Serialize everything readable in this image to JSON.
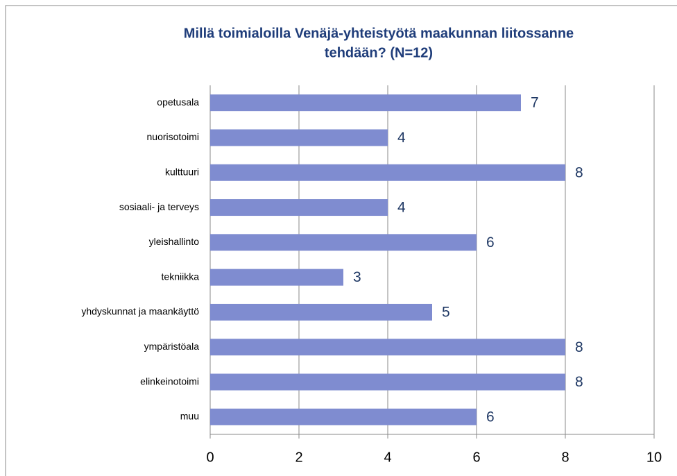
{
  "chart_data": {
    "type": "bar",
    "orientation": "horizontal",
    "title": [
      "Millä toimialoilla Venäjä-yhteistyötä maakunnan liitossanne",
      "tehdään? (N=12)"
    ],
    "categories": [
      "opetusala",
      "nuorisotoimi",
      "kulttuuri",
      "sosiaali- ja terveys",
      "yleishallinto",
      "tekniikka",
      "yhdyskunnat ja maankäyttö",
      "ympäristöala",
      "elinkeinotoimi",
      "muu"
    ],
    "values": [
      7,
      4,
      8,
      4,
      6,
      3,
      5,
      8,
      8,
      6
    ],
    "color": "#7f8cd0",
    "xlim": [
      0,
      10
    ],
    "xticks": [
      0,
      2,
      4,
      6,
      8,
      10
    ],
    "grid": true
  }
}
